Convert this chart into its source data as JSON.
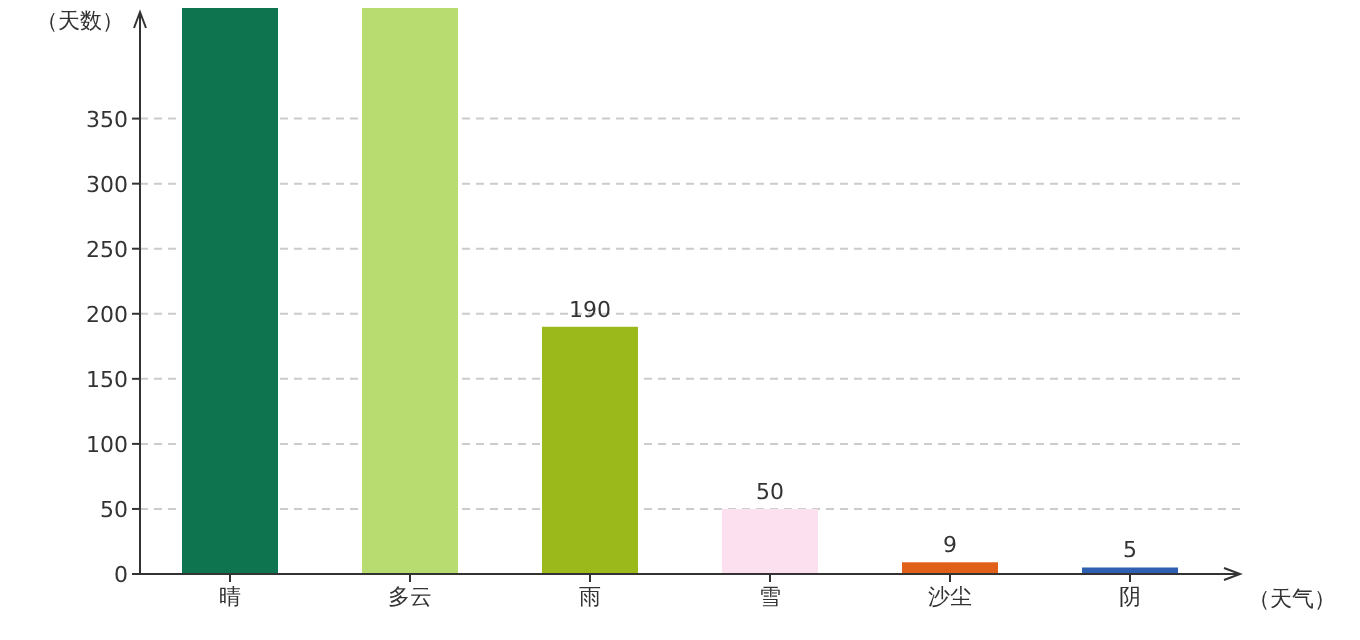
{
  "chart_data": {
    "type": "bar",
    "xlabel": "（天气）",
    "ylabel": "（天数）",
    "categories": [
      "晴",
      "多云",
      "雨",
      "雪",
      "沙尘",
      "阴"
    ],
    "values": [
      435,
      435,
      190,
      50,
      9,
      5
    ],
    "colors": [
      "#0e7450",
      "#b8dc70",
      "#9cb91c",
      "#fde0f0",
      "#e0601a",
      "#2f5fb0"
    ],
    "value_labels": [
      null,
      null,
      "190",
      "50",
      "9",
      "5"
    ],
    "ylim": [
      0,
      435
    ],
    "yticks": [
      0,
      50,
      100,
      150,
      200,
      250,
      300,
      350
    ],
    "grid": "y"
  }
}
